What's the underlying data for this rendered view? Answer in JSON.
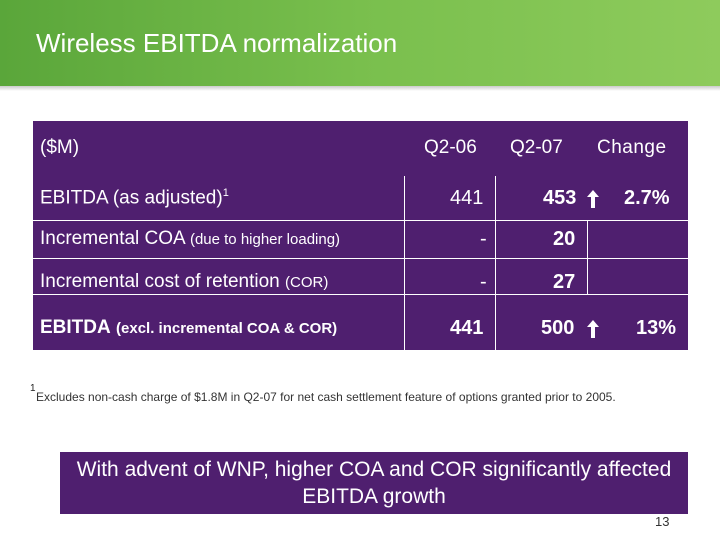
{
  "slide": {
    "title": "Wireless EBITDA normalization",
    "page_number": "13"
  },
  "table": {
    "headers": {
      "label": "($M)",
      "col1": "Q2-06",
      "col2": "Q2-07",
      "col3": "Change"
    },
    "rows": [
      {
        "label": "EBITDA (as adjusted)",
        "superscript": "1",
        "col1": "441",
        "col2": "453",
        "arrow": "up-arrow-icon",
        "change": "2.7%"
      },
      {
        "label": "Incremental COA",
        "qualifier": "(due to higher loading)",
        "col1": "-",
        "col2": "20"
      },
      {
        "label": "Incremental cost of retention",
        "qualifier": "(COR)",
        "col1": "-",
        "col2": "27"
      },
      {
        "label": "EBITDA",
        "qualifier": "(excl. incremental COA & COR)",
        "col1": "441",
        "col2": "500",
        "arrow": "up-arrow-icon",
        "change": "13%"
      }
    ]
  },
  "footnote": {
    "marker": "1",
    "text": "Excludes non-cash charge of $1.8M in Q2-07 for net cash settlement feature of options granted prior to 2005."
  },
  "callout": {
    "text": "With advent of WNP, higher COA and COR significantly affected EBITDA growth"
  },
  "colors": {
    "header_green": "#79bf4d",
    "table_purple": "#4f1f6f",
    "text_white": "#ffffff"
  }
}
